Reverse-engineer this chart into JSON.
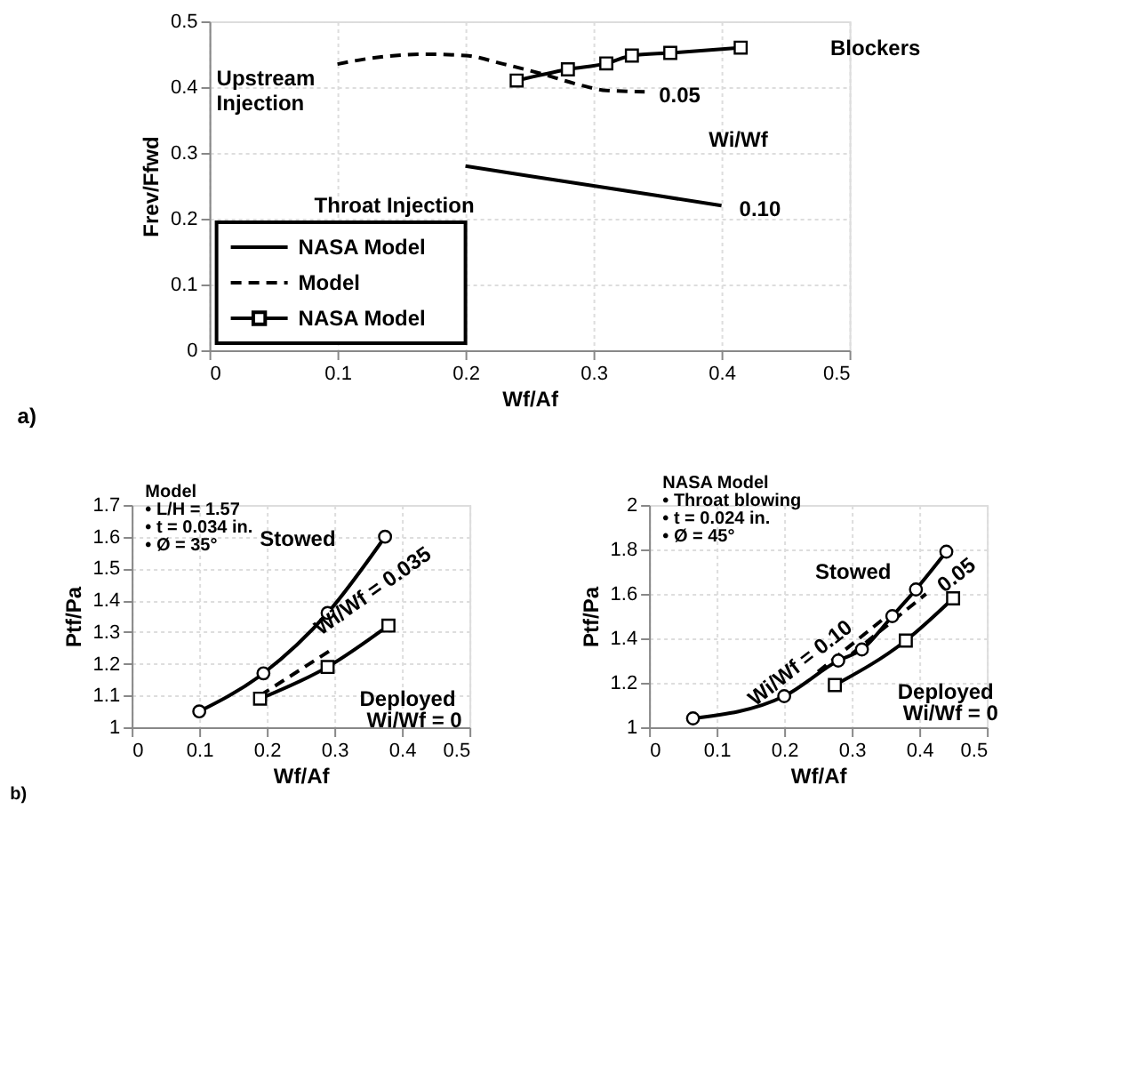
{
  "chart_data": [
    {
      "type": "line",
      "xlabel": "Wf/Af",
      "ylabel": "Frev/Ffwd",
      "xlim": [
        0,
        0.5
      ],
      "ylim": [
        0,
        0.5
      ],
      "xticks": [
        0,
        0.1,
        0.2,
        0.3,
        0.4,
        0.5
      ],
      "yticks": [
        0,
        0.1,
        0.2,
        0.3,
        0.4,
        0.5
      ],
      "grid": true,
      "legend": "bottom left",
      "series": [
        {
          "name": "NASA Model",
          "color": "#000000",
          "line_style": "solid",
          "marker": "none",
          "x": [
            0.2,
            0.3,
            0.4
          ],
          "values": [
            0.28,
            0.25,
            0.22
          ]
        },
        {
          "name": "Model",
          "color": "#000000",
          "line_style": "dashed",
          "marker": "none",
          "x": [
            0.1,
            0.13,
            0.17,
            0.2,
            0.23,
            0.26,
            0.29,
            0.31,
            0.34
          ],
          "values": [
            0.435,
            0.445,
            0.45,
            0.448,
            0.435,
            0.42,
            0.403,
            0.395,
            0.393
          ]
        },
        {
          "name": "NASA Model",
          "color": "#000000",
          "line_style": "solid",
          "marker": "square",
          "x": [
            0.24,
            0.28,
            0.31,
            0.33,
            0.36,
            0.415
          ],
          "values": [
            0.41,
            0.427,
            0.436,
            0.448,
            0.452,
            0.46
          ]
        }
      ],
      "annotations": [
        "Blockers",
        {
          "text": "Upstream\nInjection",
          "x": 0.1,
          "y": 0.435
        },
        {
          "text": "0.05",
          "x": 0.34,
          "y": 0.393
        },
        "Wi/Wf",
        {
          "text": "Throat Injection",
          "x": 0.2,
          "y": 0.28
        },
        {
          "text": "0.10",
          "x": 0.4,
          "y": 0.22
        },
        "a)"
      ]
    },
    {
      "type": "line",
      "xlabel": "Wf/Af",
      "ylabel": "Ptf/Pa",
      "xlim": [
        0,
        0.5
      ],
      "ylim": [
        1,
        1.7
      ],
      "xticks": [
        0,
        0.1,
        0.2,
        0.3,
        0.4,
        0.5
      ],
      "yticks": [
        1,
        1.1,
        1.2,
        1.3,
        1.4,
        1.5,
        1.6,
        1.7
      ],
      "grid": true,
      "series": [
        {
          "color": "#000000",
          "line_style": "solid",
          "marker": "circle",
          "x": [
            0.1,
            0.195,
            0.29,
            0.375
          ],
          "values": [
            1.05,
            1.17,
            1.36,
            1.6
          ]
        },
        {
          "color": "#000000",
          "line_style": "solid",
          "marker": "square",
          "x": [
            0.19,
            0.29,
            0.38
          ],
          "values": [
            1.09,
            1.19,
            1.32
          ]
        },
        {
          "color": "#000000",
          "line_style": "dashed",
          "marker": "none",
          "x": [
            0.19,
            0.3
          ],
          "values": [
            1.1,
            1.25
          ]
        }
      ],
      "annotations": [
        "Model",
        "• L/H = 1.57",
        "• t = 0.034 in.",
        "• Ø = 35°",
        {
          "text": "Stowed",
          "x": 0.33,
          "y": 1.47
        },
        {
          "text": "Wi/Wf = 0.035",
          "x": 0.3,
          "y": 1.25
        },
        {
          "text": "Deployed",
          "x": 0.29,
          "y": 1.19
        },
        {
          "text": "Wi/Wf = 0",
          "x": 0.29,
          "y": 1.19
        },
        "b)"
      ]
    },
    {
      "type": "line",
      "xlabel": "Wf/Af",
      "ylabel": "Ptf/Pa",
      "xlim": [
        0,
        0.5
      ],
      "ylim": [
        1,
        2
      ],
      "xticks": [
        0,
        0.1,
        0.2,
        0.3,
        0.4,
        0.5
      ],
      "yticks": [
        1,
        1.2,
        1.4,
        1.6,
        1.8,
        2
      ],
      "grid": true,
      "series": [
        {
          "color": "#000000",
          "line_style": "solid",
          "marker": "circle",
          "x": [
            0.065,
            0.2,
            0.28,
            0.315,
            0.36,
            0.395,
            0.44
          ],
          "values": [
            1.04,
            1.14,
            1.3,
            1.35,
            1.5,
            1.62,
            1.79
          ]
        },
        {
          "color": "#000000",
          "line_style": "solid",
          "marker": "square",
          "x": [
            0.275,
            0.38,
            0.45
          ],
          "values": [
            1.19,
            1.39,
            1.58
          ]
        },
        {
          "color": "#000000",
          "line_style": "dashed",
          "marker": "none",
          "x": [
            0.25,
            0.36
          ],
          "values": [
            1.25,
            1.52
          ]
        },
        {
          "color": "#000000",
          "line_style": "dashed",
          "marker": "none",
          "x": [
            0.3,
            0.41
          ],
          "values": [
            1.33,
            1.6
          ]
        }
      ],
      "annotations": [
        "NASA Model",
        "• Throat blowing",
        "• t = 0.024 in.",
        "• Ø = 45°",
        {
          "text": "Stowed",
          "x": 0.36,
          "y": 1.5
        },
        {
          "text": "Wi/Wf = 0.10",
          "x": 0.3,
          "y": 1.33
        },
        {
          "text": "0.05",
          "x": 0.41,
          "y": 1.6
        },
        {
          "text": "Deployed",
          "x": 0.31,
          "y": 1.24
        },
        {
          "text": "Wi/Wf = 0",
          "x": 0.31,
          "y": 1.24
        }
      ]
    }
  ]
}
